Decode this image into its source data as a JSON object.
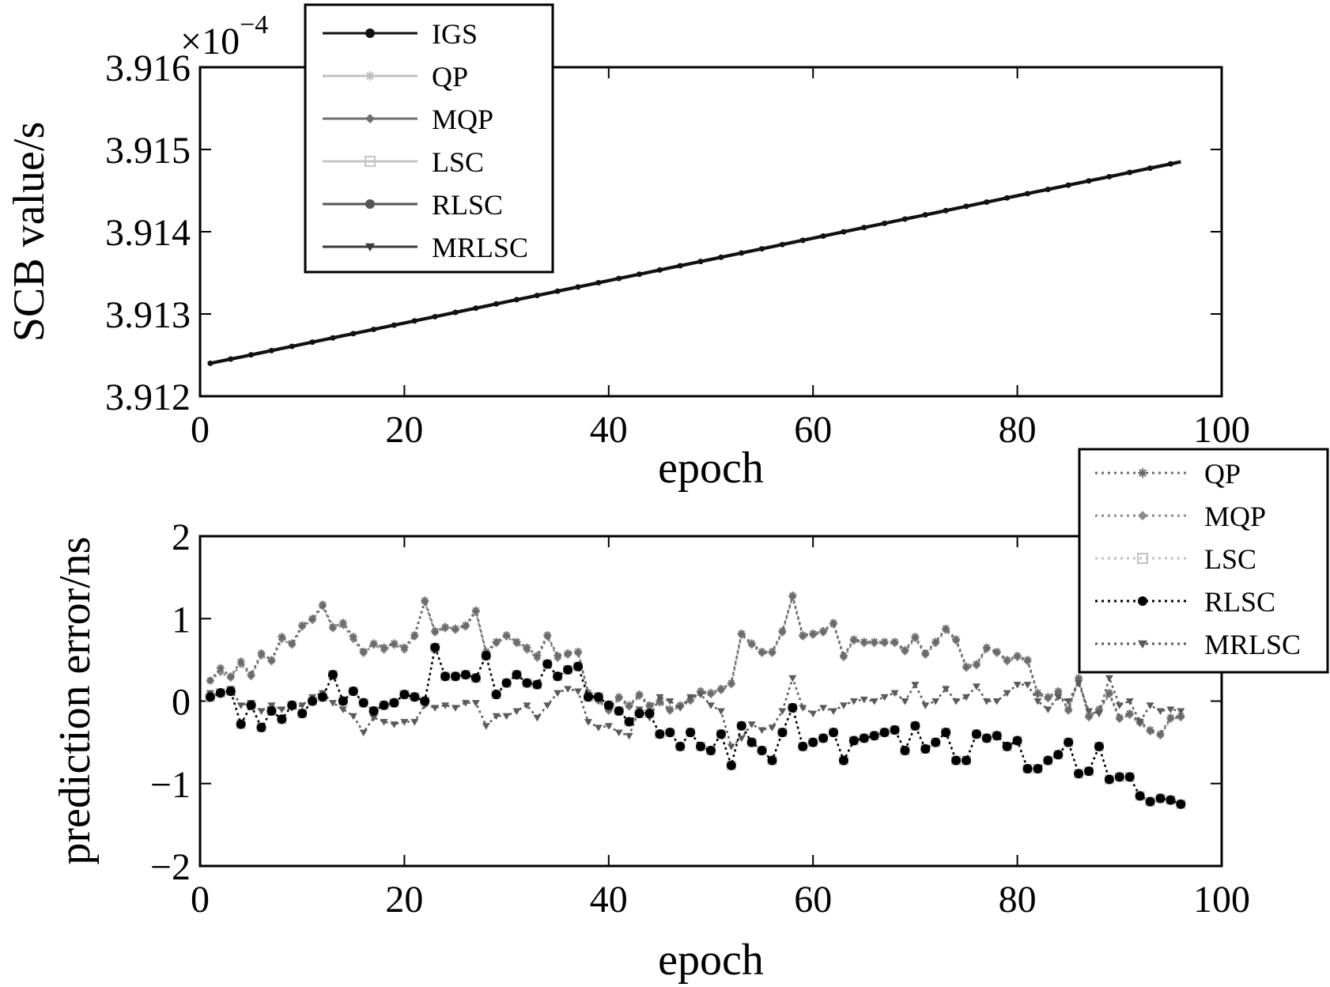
{
  "colors": {
    "IGS": "#111111",
    "QP": "#bfbfbf",
    "MQP": "#6f6f6f",
    "LSC": "#c4c4c4",
    "RLSC": "#555555",
    "MRLSC": "#3a3a3a",
    "err_QP": "#6a6a6a",
    "err_MQP": "#8a8a8a",
    "err_LSC": "#c0c0c0",
    "err_RLSC": "#000000",
    "err_MRLSC": "#5a5a5a"
  },
  "chart_data": [
    {
      "type": "line",
      "xlabel": "epoch",
      "ylabel": "SCB value/s",
      "y_multiplier_label": "×10",
      "y_multiplier_exp": "−4",
      "xlim": [
        0,
        100
      ],
      "ylim": [
        3.912,
        3.916
      ],
      "xticks": [
        "0",
        "20",
        "40",
        "60",
        "80",
        "100"
      ],
      "yticks": [
        "3.912",
        "3.913",
        "3.914",
        "3.915",
        "3.916"
      ],
      "legend": {
        "position": "top-left-outside",
        "entries": [
          "IGS",
          "QP",
          "MQP",
          "LSC",
          "RLSC",
          "MRLSC"
        ]
      },
      "x_start": 1,
      "x_end": 96,
      "y_start": 3.9124,
      "y_end": 3.91485,
      "series": [
        {
          "name": "IGS",
          "marker": "dot"
        },
        {
          "name": "QP",
          "marker": "star"
        },
        {
          "name": "MQP",
          "marker": "diamond"
        },
        {
          "name": "LSC",
          "marker": "square"
        },
        {
          "name": "RLSC",
          "marker": "dot"
        },
        {
          "name": "MRLSC",
          "marker": "triangle-down"
        }
      ]
    },
    {
      "type": "line",
      "xlabel": "epoch",
      "ylabel": "prediction error/ns",
      "xlim": [
        0,
        100
      ],
      "ylim": [
        -2,
        2
      ],
      "xticks": [
        "0",
        "20",
        "40",
        "60",
        "80",
        "100"
      ],
      "yticks": [
        "−2",
        "−1",
        "0",
        "1",
        "2"
      ],
      "legend": {
        "position": "top-right-outside",
        "entries": [
          "QP",
          "MQP",
          "LSC",
          "RLSC",
          "MRLSC"
        ]
      },
      "x": [
        1,
        2,
        3,
        4,
        5,
        6,
        7,
        8,
        9,
        10,
        11,
        12,
        13,
        14,
        15,
        16,
        17,
        18,
        19,
        20,
        21,
        22,
        23,
        24,
        25,
        26,
        27,
        28,
        29,
        30,
        31,
        32,
        33,
        34,
        35,
        36,
        37,
        38,
        39,
        40,
        41,
        42,
        43,
        44,
        45,
        46,
        47,
        48,
        49,
        50,
        51,
        52,
        53,
        54,
        55,
        56,
        57,
        58,
        59,
        60,
        61,
        62,
        63,
        64,
        65,
        66,
        67,
        68,
        69,
        70,
        71,
        72,
        73,
        74,
        75,
        76,
        77,
        78,
        79,
        80,
        81,
        82,
        83,
        84,
        85,
        86,
        87,
        88,
        89,
        90,
        91,
        92,
        93,
        94,
        95,
        96
      ],
      "series": [
        {
          "name": "QP",
          "marker": "star",
          "values": [
            0.25,
            0.4,
            0.3,
            0.48,
            0.32,
            0.58,
            0.5,
            0.78,
            0.7,
            0.92,
            1.0,
            1.17,
            0.9,
            0.95,
            0.78,
            0.6,
            0.7,
            0.65,
            0.7,
            0.65,
            0.8,
            1.22,
            0.85,
            0.9,
            0.88,
            0.92,
            1.1,
            0.6,
            0.72,
            0.8,
            0.72,
            0.65,
            0.55,
            0.8,
            0.55,
            0.58,
            0.6,
            0.1,
            0.02,
            -0.1,
            0.05,
            -0.05,
            0.08,
            -0.05,
            0.0,
            -0.1,
            -0.05,
            0.02,
            0.12,
            0.1,
            0.15,
            0.22,
            0.82,
            0.7,
            0.6,
            0.6,
            0.85,
            1.28,
            0.8,
            0.82,
            0.85,
            0.95,
            0.55,
            0.75,
            0.72,
            0.72,
            0.72,
            0.72,
            0.62,
            0.78,
            0.58,
            0.72,
            0.88,
            0.75,
            0.42,
            0.45,
            0.65,
            0.6,
            0.5,
            0.55,
            0.5,
            0.1,
            0.05,
            0.12,
            -0.1,
            0.28,
            -0.18,
            -0.1,
            0.1,
            -0.2,
            -0.15,
            -0.25,
            -0.35,
            -0.4,
            -0.2,
            -0.18
          ]
        },
        {
          "name": "MQP",
          "marker": "diamond",
          "values": [
            0.25,
            0.35,
            0.28,
            0.45,
            0.3,
            0.55,
            0.48,
            0.75,
            0.68,
            0.9,
            0.98,
            1.15,
            0.88,
            0.92,
            0.75,
            0.58,
            0.68,
            0.62,
            0.68,
            0.62,
            0.78,
            1.2,
            0.83,
            0.88,
            0.86,
            0.9,
            1.08,
            0.58,
            0.7,
            0.78,
            0.7,
            0.62,
            0.52,
            0.78,
            0.52,
            0.56,
            0.58,
            0.08,
            0.0,
            -0.12,
            0.03,
            -0.07,
            0.06,
            -0.07,
            -0.02,
            -0.12,
            -0.07,
            0.0,
            0.1,
            0.08,
            0.13,
            0.2,
            0.8,
            0.68,
            0.58,
            0.58,
            0.83,
            1.26,
            0.78,
            0.8,
            0.83,
            0.93,
            0.53,
            0.73,
            0.7,
            0.7,
            0.7,
            0.7,
            0.6,
            0.76,
            0.56,
            0.7,
            0.86,
            0.73,
            0.4,
            0.43,
            0.63,
            0.58,
            0.48,
            0.53,
            0.48,
            0.08,
            0.03,
            0.1,
            -0.12,
            0.26,
            -0.2,
            -0.12,
            0.08,
            -0.22,
            -0.17,
            -0.27,
            -0.37,
            -0.42,
            -0.22,
            -0.2
          ]
        },
        {
          "name": "LSC",
          "marker": "square",
          "values": [
            0.05,
            0.1,
            0.12,
            -0.28,
            -0.05,
            -0.32,
            -0.12,
            -0.22,
            -0.05,
            -0.15,
            0.0,
            0.05,
            0.32,
            0.0,
            0.12,
            -0.02,
            -0.12,
            -0.05,
            -0.02,
            0.08,
            0.05,
            0.0,
            0.65,
            0.3,
            0.3,
            0.32,
            0.28,
            0.55,
            0.08,
            0.22,
            0.32,
            0.22,
            0.2,
            0.45,
            0.3,
            0.38,
            0.42,
            0.05,
            0.05,
            -0.05,
            -0.12,
            -0.25,
            -0.15,
            -0.15,
            -0.4,
            -0.38,
            -0.55,
            -0.38,
            -0.55,
            -0.6,
            -0.4,
            -0.78,
            -0.3,
            -0.5,
            -0.6,
            -0.72,
            -0.38,
            -0.08,
            -0.55,
            -0.5,
            -0.45,
            -0.38,
            -0.72,
            -0.48,
            -0.45,
            -0.42,
            -0.38,
            -0.35,
            -0.6,
            -0.3,
            -0.58,
            -0.5,
            -0.38,
            -0.72,
            -0.72,
            -0.4,
            -0.45,
            -0.42,
            -0.55,
            -0.48,
            -0.82,
            -0.82,
            -0.72,
            -0.65,
            -0.5,
            -0.88,
            -0.85,
            -0.55,
            -0.95,
            -0.92,
            -0.92,
            -1.15,
            -1.22,
            -1.18,
            -1.2,
            -1.25
          ]
        },
        {
          "name": "RLSC",
          "marker": "dot",
          "values": [
            0.05,
            0.1,
            0.12,
            -0.28,
            -0.05,
            -0.32,
            -0.12,
            -0.22,
            -0.05,
            -0.15,
            0.0,
            0.05,
            0.32,
            0.0,
            0.12,
            -0.02,
            -0.12,
            -0.05,
            -0.02,
            0.08,
            0.05,
            0.0,
            0.65,
            0.3,
            0.3,
            0.32,
            0.28,
            0.55,
            0.08,
            0.22,
            0.32,
            0.22,
            0.2,
            0.45,
            0.3,
            0.38,
            0.42,
            0.05,
            0.05,
            -0.05,
            -0.12,
            -0.25,
            -0.15,
            -0.15,
            -0.4,
            -0.38,
            -0.55,
            -0.38,
            -0.55,
            -0.6,
            -0.4,
            -0.78,
            -0.3,
            -0.5,
            -0.6,
            -0.72,
            -0.38,
            -0.08,
            -0.55,
            -0.5,
            -0.45,
            -0.38,
            -0.72,
            -0.48,
            -0.45,
            -0.42,
            -0.38,
            -0.35,
            -0.6,
            -0.3,
            -0.58,
            -0.5,
            -0.38,
            -0.72,
            -0.72,
            -0.4,
            -0.45,
            -0.42,
            -0.55,
            -0.48,
            -0.82,
            -0.82,
            -0.72,
            -0.65,
            -0.5,
            -0.88,
            -0.85,
            -0.55,
            -0.95,
            -0.92,
            -0.92,
            -1.15,
            -1.22,
            -1.18,
            -1.2,
            -1.25
          ]
        },
        {
          "name": "MRLSC",
          "marker": "triangle-down",
          "values": [
            0.1,
            0.08,
            0.15,
            -0.05,
            -0.02,
            -0.12,
            -0.05,
            -0.1,
            -0.08,
            -0.05,
            0.05,
            0.1,
            -0.02,
            -0.1,
            -0.18,
            -0.38,
            -0.2,
            -0.25,
            -0.28,
            -0.25,
            -0.25,
            -0.05,
            -0.08,
            -0.05,
            -0.08,
            -0.02,
            -0.02,
            -0.3,
            -0.18,
            -0.18,
            -0.12,
            -0.05,
            -0.2,
            -0.05,
            0.1,
            0.15,
            0.12,
            -0.25,
            -0.32,
            -0.3,
            -0.38,
            -0.42,
            -0.1,
            -0.2,
            0.05,
            0.0,
            -0.08,
            0.05,
            0.08,
            -0.05,
            -0.12,
            -0.55,
            -0.45,
            -0.28,
            -0.35,
            -0.32,
            -0.12,
            0.28,
            -0.08,
            -0.15,
            -0.08,
            -0.12,
            -0.05,
            0.0,
            0.02,
            0.0,
            0.05,
            0.1,
            0.0,
            0.2,
            -0.05,
            0.0,
            0.15,
            0.0,
            0.05,
            0.18,
            0.0,
            0.0,
            0.1,
            0.2,
            0.2,
            0.0,
            -0.1,
            0.05,
            0.0,
            0.22,
            -0.12,
            -0.15,
            0.28,
            -0.05,
            0.0,
            -0.25,
            -0.05,
            -0.12,
            -0.1,
            -0.12
          ]
        }
      ]
    }
  ]
}
